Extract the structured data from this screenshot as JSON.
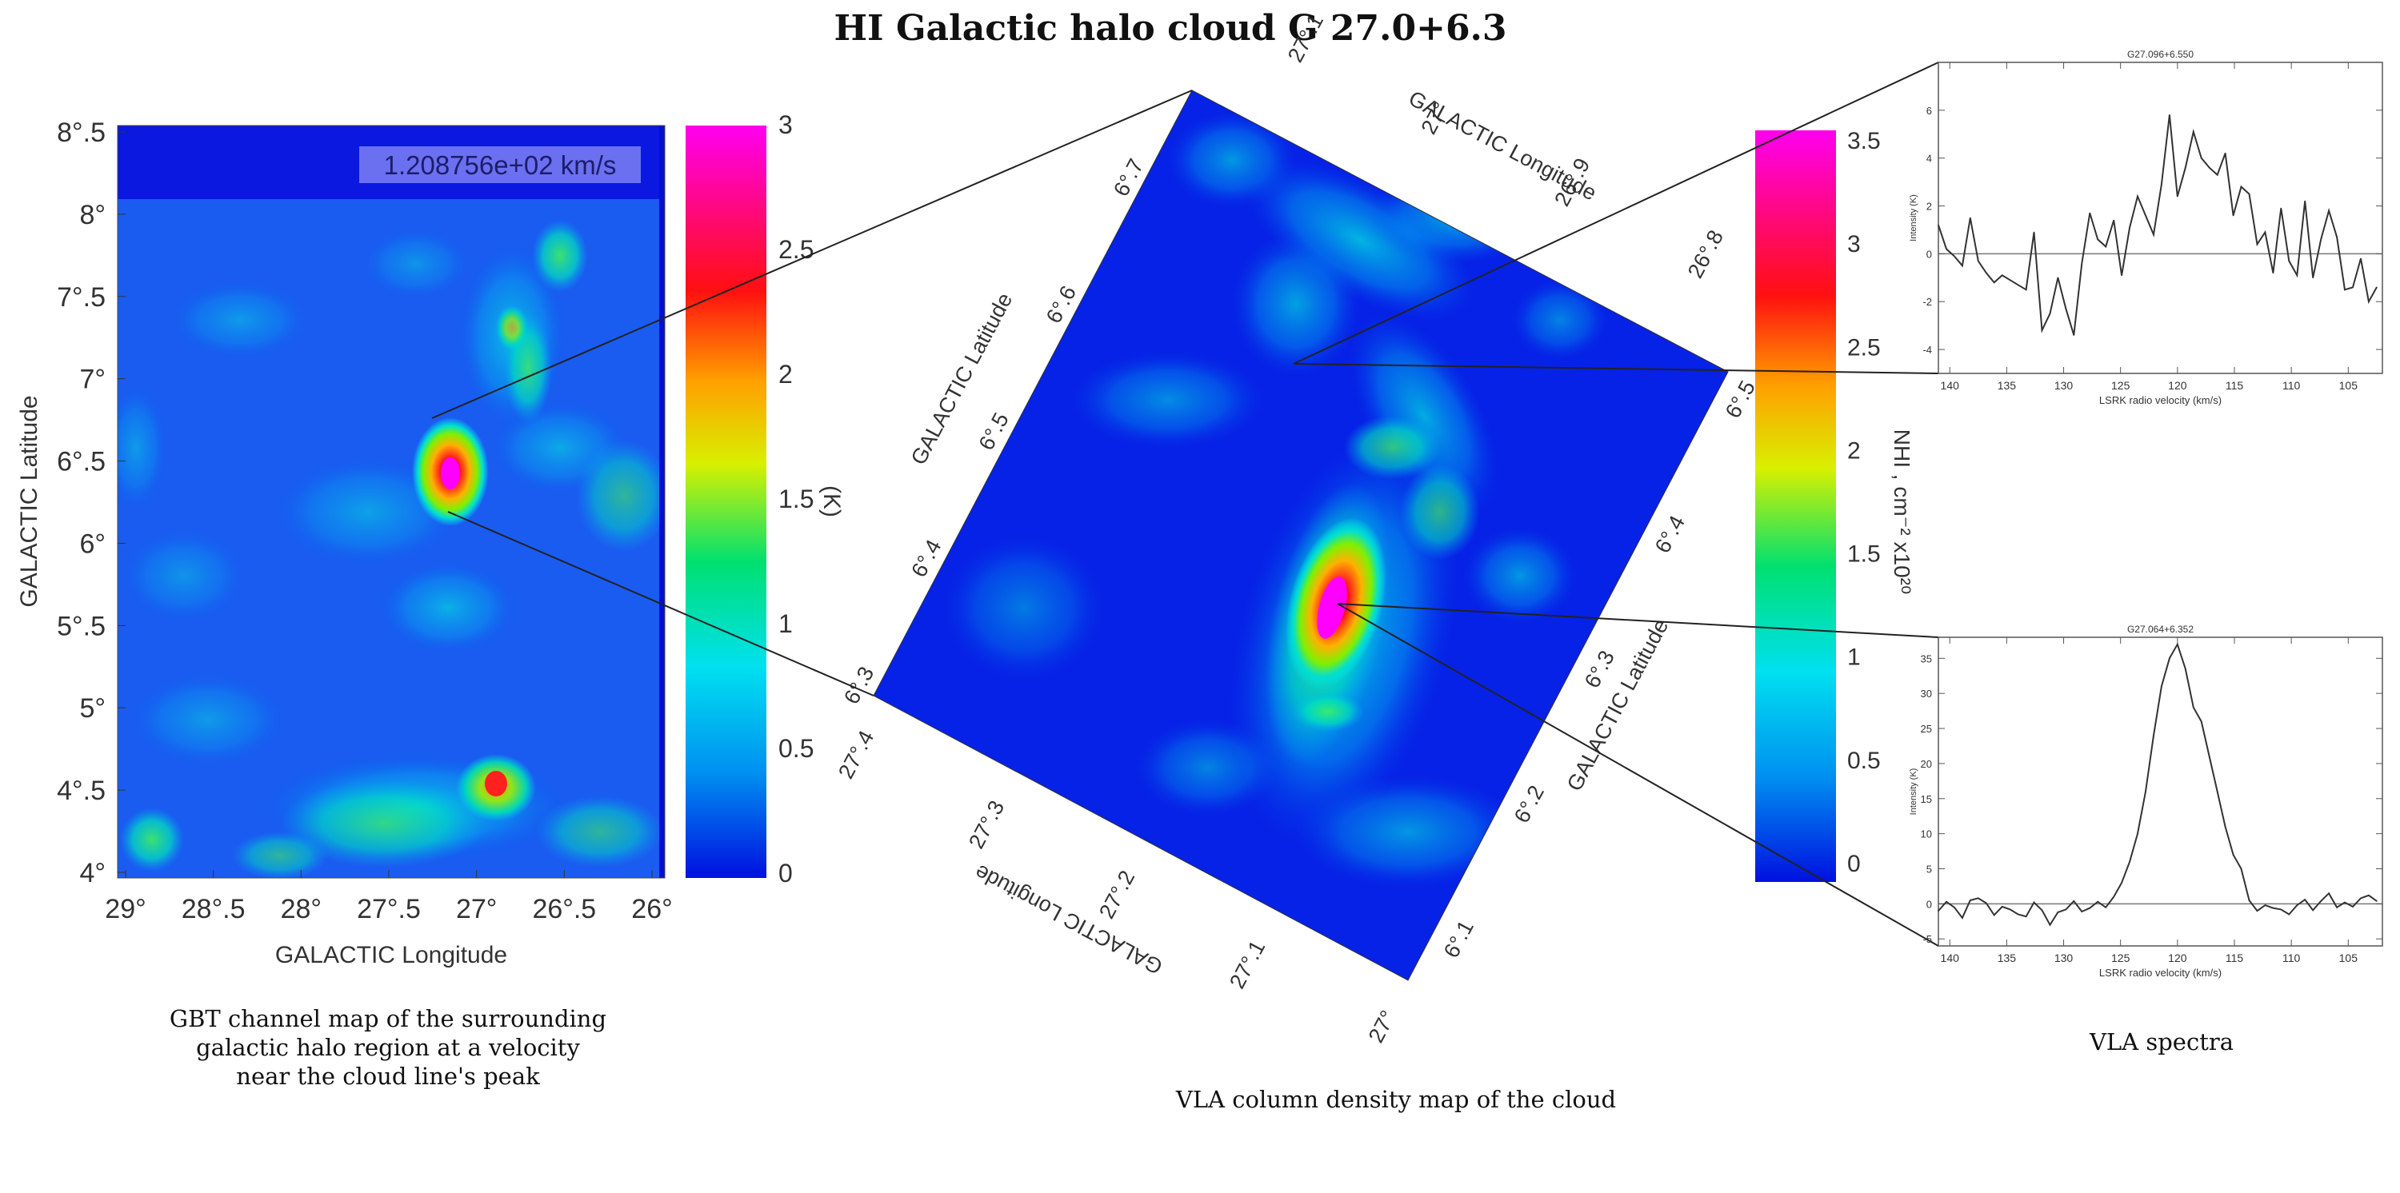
{
  "title": "HI Galactic halo cloud G 27.0+6.3",
  "gbt_map": {
    "velocity_label": "1.208756e+02 km/s",
    "xlabel": "GALACTIC Longitude",
    "ylabel": "GALACTIC Latitude",
    "x_ticks": [
      "29°",
      "28°.5",
      "28°",
      "27°.5",
      "27°",
      "26°.5",
      "26°"
    ],
    "y_ticks": [
      "8°.5",
      "8°",
      "7°.5",
      "7°",
      "6°.5",
      "6°",
      "5°.5",
      "5°",
      "4°.5",
      "4°"
    ],
    "colorbar_ticks": [
      "3",
      "2.5",
      "2",
      "1.5",
      "1",
      "0.5",
      "0"
    ],
    "colorbar_label": "(K)",
    "caption": [
      "GBT channel map of the surrounding",
      "galactic halo region at a velocity",
      "near the cloud line's peak"
    ]
  },
  "vla_map": {
    "top_longitude_ticks": [
      "27°.1",
      "27°",
      "26°.9",
      "26°.8"
    ],
    "left_latitude_ticks": [
      "6°.7",
      "6°.6",
      "6°.5",
      "6°.4",
      "6°.3"
    ],
    "bottom_longitude_ticks": [
      "27°.4",
      "27°.3",
      "27°.2",
      "27°.1",
      "27°"
    ],
    "right_latitude_ticks": [
      "6°.5",
      "6°.4",
      "6°.3",
      "6°.2",
      "6°.1"
    ],
    "longitude_label": "GALACTIC Longitude",
    "latitude_label": "GALACTIC Latitude",
    "colorbar_ticks": [
      "3.5",
      "3",
      "2.5",
      "2",
      "1.5",
      "1",
      "0.5",
      "0"
    ],
    "colorbar_label": "NHI , cm⁻² x10²⁰",
    "caption": "VLA column density map of the cloud"
  },
  "spectra_caption": "VLA spectra",
  "colormap": [
    "#0018e0",
    "#0088f0",
    "#00e0f0",
    "#00e070",
    "#e0f000",
    "#ff9000",
    "#ff1010",
    "#ff00ff"
  ],
  "chart_data": [
    {
      "type": "line",
      "title": "G27.096+6.550",
      "xlabel": "LSRK radio velocity (km/s)",
      "ylabel": "Intensity (K)",
      "xlim": [
        141,
        102
      ],
      "ylim": [
        -5,
        8
      ],
      "x_ticks": [
        140,
        135,
        130,
        125,
        120,
        115,
        110,
        105
      ],
      "y_ticks": [
        -4,
        -2,
        0,
        2,
        4,
        6
      ],
      "x": [
        141,
        140.3,
        139.6,
        138.9,
        138.2,
        137.5,
        136.8,
        136.1,
        135.4,
        134.7,
        134.0,
        133.3,
        132.6,
        131.9,
        131.2,
        130.5,
        129.8,
        129.1,
        128.4,
        127.7,
        127.0,
        126.3,
        125.6,
        124.9,
        124.2,
        123.5,
        122.8,
        122.1,
        121.4,
        120.7,
        120.0,
        119.3,
        118.6,
        117.9,
        117.2,
        116.5,
        115.8,
        115.1,
        114.4,
        113.7,
        113.0,
        112.3,
        111.6,
        110.9,
        110.2,
        109.5,
        108.8,
        108.1,
        107.4,
        106.7,
        106.0,
        105.3,
        104.6,
        103.9,
        103.2,
        102.5
      ],
      "values": [
        1.2,
        0.2,
        -0.1,
        -0.5,
        1.5,
        -0.3,
        -0.8,
        -1.2,
        -0.9,
        -1.1,
        -1.3,
        -1.5,
        0.9,
        -3.2,
        -2.5,
        -1.0,
        -2.3,
        -3.4,
        -0.4,
        1.7,
        0.6,
        0.3,
        1.4,
        -0.9,
        1.1,
        2.4,
        1.6,
        0.8,
        2.9,
        5.8,
        2.4,
        3.6,
        5.1,
        4.0,
        3.6,
        3.3,
        4.2,
        1.6,
        2.8,
        2.5,
        0.4,
        0.9,
        -0.8,
        1.9,
        -0.3,
        -0.9,
        2.2,
        -1.0,
        0.6,
        1.8,
        0.7,
        -1.5,
        -1.4,
        -0.2,
        -2.0,
        -1.4
      ]
    },
    {
      "type": "line",
      "title": "G27.064+6.352",
      "xlabel": "LSRK radio velocity (km/s)",
      "ylabel": "Intensity (K)",
      "xlim": [
        141,
        102
      ],
      "ylim": [
        -6,
        38
      ],
      "x_ticks": [
        140,
        135,
        130,
        125,
        120,
        115,
        110,
        105
      ],
      "y_ticks": [
        -5,
        0,
        5,
        10,
        15,
        20,
        25,
        30,
        35
      ],
      "x": [
        141,
        140.3,
        139.6,
        138.9,
        138.2,
        137.5,
        136.8,
        136.1,
        135.4,
        134.7,
        134.0,
        133.3,
        132.6,
        131.9,
        131.2,
        130.5,
        129.8,
        129.1,
        128.4,
        127.7,
        127.0,
        126.3,
        125.6,
        124.9,
        124.2,
        123.5,
        122.8,
        122.1,
        121.4,
        120.7,
        120.0,
        119.3,
        118.6,
        117.9,
        117.2,
        116.5,
        115.8,
        115.1,
        114.4,
        113.7,
        113.0,
        112.3,
        111.6,
        110.9,
        110.2,
        109.5,
        108.8,
        108.1,
        107.4,
        106.7,
        106.0,
        105.3,
        104.6,
        103.9,
        103.2,
        102.5
      ],
      "values": [
        -1.0,
        0.3,
        -0.5,
        -2.0,
        0.5,
        0.8,
        0.1,
        -1.6,
        -0.4,
        -0.8,
        -1.5,
        -1.8,
        0.2,
        -0.9,
        -3.0,
        -1.2,
        -0.8,
        0.4,
        -1.1,
        -0.6,
        0.3,
        -0.5,
        1.0,
        3.0,
        6.0,
        10.0,
        16.0,
        24.0,
        31.0,
        35.0,
        37.0,
        33.5,
        28.0,
        26.0,
        21.0,
        16.0,
        11.0,
        7.0,
        5.0,
        0.5,
        -1.0,
        -0.2,
        -0.6,
        -0.8,
        -1.5,
        -0.2,
        0.6,
        -0.9,
        0.4,
        1.5,
        -0.5,
        0.2,
        -0.4,
        0.8,
        1.2,
        0.4
      ]
    }
  ]
}
